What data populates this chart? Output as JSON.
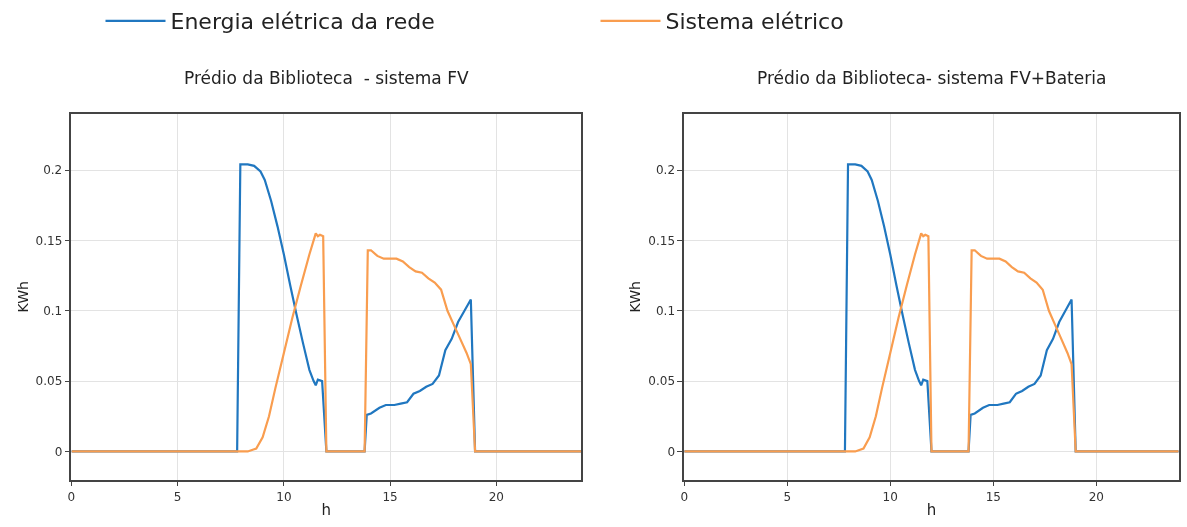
{
  "chart_data": [
    {
      "type": "line",
      "title": "Prédio da Biblioteca  - sistema FV",
      "xlabel": "h",
      "ylabel": "KWh",
      "xlim": [
        0,
        24
      ],
      "xticks": [
        0,
        5,
        10,
        15,
        20
      ],
      "ylim": [
        -0.02,
        0.24
      ],
      "yticks": [
        0,
        0.05,
        0.1,
        0.15,
        0.2
      ],
      "grid": true,
      "legend": "top",
      "marker": "none",
      "line_style": "solid",
      "series": [
        {
          "name": "Energia elétrica da rede",
          "color": "#2077c0",
          "x": [
            0,
            7.8,
            7.95,
            8.3,
            8.6,
            8.9,
            9.1,
            9.4,
            9.7,
            10.0,
            10.3,
            10.6,
            10.9,
            11.2,
            11.4,
            11.5,
            11.6,
            11.8,
            12.0,
            13.8,
            13.9,
            14.1,
            14.5,
            14.8,
            15.2,
            15.5,
            15.8,
            16.1,
            16.4,
            16.7,
            17.0,
            17.3,
            17.6,
            17.9,
            18.2,
            18.5,
            18.8,
            19.0,
            24
          ],
          "values": [
            0,
            0,
            0.204,
            0.204,
            0.203,
            0.199,
            0.193,
            0.178,
            0.16,
            0.14,
            0.118,
            0.097,
            0.077,
            0.058,
            0.05,
            0.047,
            0.051,
            0.05,
            0,
            0,
            0.026,
            0.027,
            0.031,
            0.033,
            0.033,
            0.034,
            0.035,
            0.041,
            0.043,
            0.046,
            0.048,
            0.054,
            0.072,
            0.08,
            0.092,
            0.1,
            0.108,
            0,
            0
          ]
        },
        {
          "name": "Sistema elétrico",
          "color": "#f99d4f",
          "x": [
            0,
            8.3,
            8.7,
            9.0,
            9.3,
            9.6,
            10.0,
            10.4,
            10.8,
            11.2,
            11.5,
            11.6,
            11.7,
            11.85,
            12.0,
            13.8,
            13.95,
            14.1,
            14.4,
            14.7,
            15.0,
            15.3,
            15.6,
            15.9,
            16.2,
            16.5,
            16.8,
            17.1,
            17.4,
            17.7,
            18.0,
            18.3,
            18.6,
            18.8,
            19.0,
            24
          ],
          "values": [
            0,
            0,
            0.002,
            0.01,
            0.025,
            0.045,
            0.07,
            0.095,
            0.118,
            0.14,
            0.155,
            0.153,
            0.154,
            0.153,
            0,
            0,
            0.143,
            0.143,
            0.139,
            0.137,
            0.137,
            0.137,
            0.135,
            0.131,
            0.128,
            0.127,
            0.123,
            0.12,
            0.115,
            0.1,
            0.09,
            0.08,
            0.07,
            0.062,
            0,
            0
          ]
        }
      ]
    },
    {
      "type": "line",
      "title": "Prédio da Biblioteca- sistema FV+Bateria",
      "xlabel": "h",
      "ylabel": "KWh",
      "xlim": [
        0,
        24
      ],
      "xticks": [
        0,
        5,
        10,
        15,
        20
      ],
      "ylim": [
        -0.02,
        0.24
      ],
      "yticks": [
        0,
        0.05,
        0.1,
        0.15,
        0.2
      ],
      "grid": true,
      "legend": "top",
      "marker": "none",
      "line_style": "solid",
      "series": [
        {
          "name": "Energia elétrica da rede",
          "color": "#2077c0",
          "x": [
            0,
            7.8,
            7.95,
            8.3,
            8.6,
            8.9,
            9.1,
            9.4,
            9.7,
            10.0,
            10.3,
            10.6,
            10.9,
            11.2,
            11.4,
            11.5,
            11.6,
            11.8,
            12.0,
            13.8,
            13.9,
            14.1,
            14.5,
            14.8,
            15.2,
            15.5,
            15.8,
            16.1,
            16.4,
            16.7,
            17.0,
            17.3,
            17.6,
            17.9,
            18.2,
            18.5,
            18.8,
            19.0,
            24
          ],
          "values": [
            0,
            0,
            0.204,
            0.204,
            0.203,
            0.199,
            0.193,
            0.178,
            0.16,
            0.14,
            0.118,
            0.097,
            0.077,
            0.058,
            0.05,
            0.047,
            0.051,
            0.05,
            0,
            0,
            0.026,
            0.027,
            0.031,
            0.033,
            0.033,
            0.034,
            0.035,
            0.041,
            0.043,
            0.046,
            0.048,
            0.054,
            0.072,
            0.08,
            0.092,
            0.1,
            0.108,
            0,
            0
          ]
        },
        {
          "name": "Sistema elétrico",
          "color": "#f99d4f",
          "x": [
            0,
            8.3,
            8.7,
            9.0,
            9.3,
            9.6,
            10.0,
            10.4,
            10.8,
            11.2,
            11.5,
            11.6,
            11.7,
            11.85,
            12.0,
            13.8,
            13.95,
            14.1,
            14.4,
            14.7,
            15.0,
            15.3,
            15.6,
            15.9,
            16.2,
            16.5,
            16.8,
            17.1,
            17.4,
            17.7,
            18.0,
            18.3,
            18.6,
            18.8,
            19.0,
            24
          ],
          "values": [
            0,
            0,
            0.002,
            0.01,
            0.025,
            0.045,
            0.07,
            0.095,
            0.118,
            0.14,
            0.155,
            0.153,
            0.154,
            0.153,
            0,
            0,
            0.143,
            0.143,
            0.139,
            0.137,
            0.137,
            0.137,
            0.135,
            0.131,
            0.128,
            0.127,
            0.123,
            0.12,
            0.115,
            0.1,
            0.09,
            0.08,
            0.07,
            0.062,
            0,
            0
          ]
        }
      ]
    }
  ]
}
